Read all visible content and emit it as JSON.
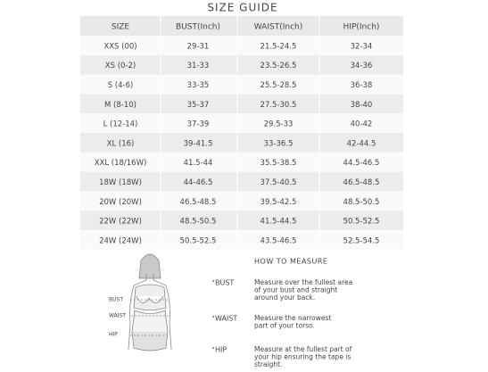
{
  "title": "SIZE GUIDE",
  "table": {
    "headers": [
      "SIZE",
      "BUST(Inch)",
      "WAIST(Inch)",
      "HIP(Inch)"
    ],
    "rows": [
      [
        "XXS (00)",
        "29-31",
        "21.5-24.5",
        "32-34"
      ],
      [
        "XS (0-2)",
        "31-33",
        "23.5-26.5",
        "34-36"
      ],
      [
        "S (4-6)",
        "33-35",
        "25.5-28.5",
        "36-38"
      ],
      [
        "M (8-10)",
        "35-37",
        "27.5-30.5",
        "38-40"
      ],
      [
        "L (12-14)",
        "37-39",
        "29.5-33",
        "40-42"
      ],
      [
        "XL (16)",
        "39-41.5",
        "33-36.5",
        "42-44.5"
      ],
      [
        "XXL (18/16W)",
        "41.5-44",
        "35.5-38.5",
        "44.5-46.5"
      ],
      [
        "18W (18W)",
        "44-46.5",
        "37.5-40.5",
        "46.5-48.5"
      ],
      [
        "20W (20W)",
        "46.5-48.5",
        "39.5-42.5",
        "48.5-50.5"
      ],
      [
        "22W (22W)",
        "48.5-50.5",
        "41.5-44.5",
        "50.5-52.5"
      ],
      [
        "24W (24W)",
        "50.5-52.5",
        "43.5-46.5",
        "52.5-54.5"
      ]
    ]
  },
  "figure": {
    "labels": [
      "BUST",
      "WAIST",
      "HIP"
    ]
  },
  "how_to_measure": {
    "title": "HOW TO MEASURE",
    "items": [
      {
        "label": "BUST",
        "lines": [
          "Measure over the fullest area",
          "of your bust and straight",
          "around your back."
        ]
      },
      {
        "label": "WAIST",
        "lines": [
          "Measure the narrowest",
          "part of your torso."
        ]
      },
      {
        "label": "HIP",
        "lines": [
          "Measure at the fullest part of",
          "your hip ensuring the tape is",
          "straight."
        ]
      }
    ]
  }
}
